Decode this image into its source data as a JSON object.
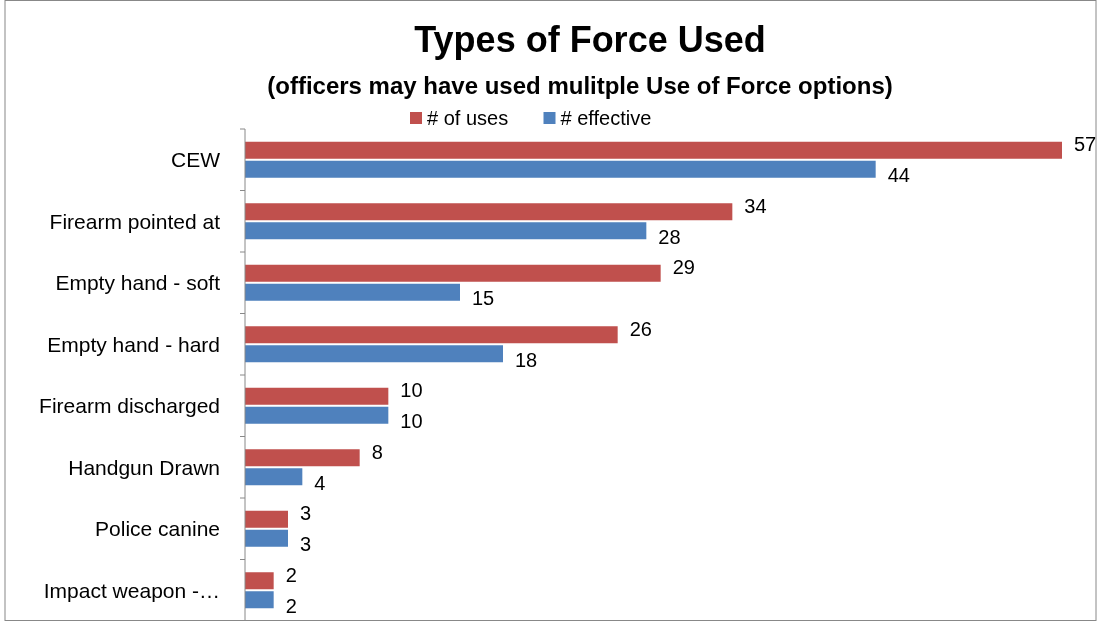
{
  "chart_data": {
    "type": "bar",
    "orientation": "horizontal",
    "title": "Types of Force Used",
    "subtitle": "(officers may have used mulitple Use of Force options)",
    "categories": [
      "CEW",
      "Firearm pointed at",
      "Empty hand - soft",
      "Empty hand - hard",
      "Firearm discharged",
      "Handgun Drawn",
      "Police canine",
      "Impact weapon -…"
    ],
    "series": [
      {
        "name": "# of uses",
        "color": "#c0504d",
        "values": [
          57,
          34,
          29,
          26,
          10,
          8,
          3,
          2
        ]
      },
      {
        "name": "# effective",
        "color": "#4f81bd",
        "values": [
          44,
          28,
          15,
          18,
          10,
          4,
          3,
          2
        ]
      }
    ],
    "data_labels": true,
    "legend": "top",
    "grid": false
  }
}
